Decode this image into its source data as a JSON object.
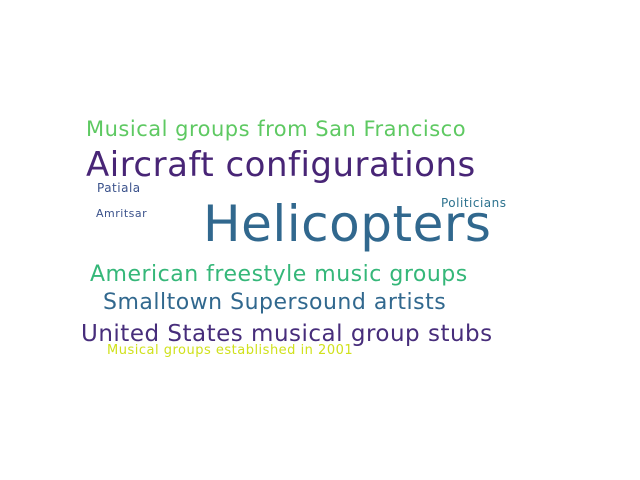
{
  "wordcloud": {
    "words": [
      {
        "text": "Musical groups from San Francisco",
        "color": "#5ec962"
      },
      {
        "text": "Aircraft configurations",
        "color": "#482576"
      },
      {
        "text": "Patiala",
        "color": "#3b528b"
      },
      {
        "text": "Politicians",
        "color": "#2c728e"
      },
      {
        "text": "Amritsar",
        "color": "#3b528b"
      },
      {
        "text": "Helicopters",
        "color": "#31688e"
      },
      {
        "text": "American freestyle music groups",
        "color": "#35b779"
      },
      {
        "text": "Smalltown Supersound artists",
        "color": "#31688e"
      },
      {
        "text": "United States musical group stubs",
        "color": "#472d7b"
      },
      {
        "text": "Musical groups established in 2001",
        "color": "#d0e11c"
      }
    ]
  }
}
